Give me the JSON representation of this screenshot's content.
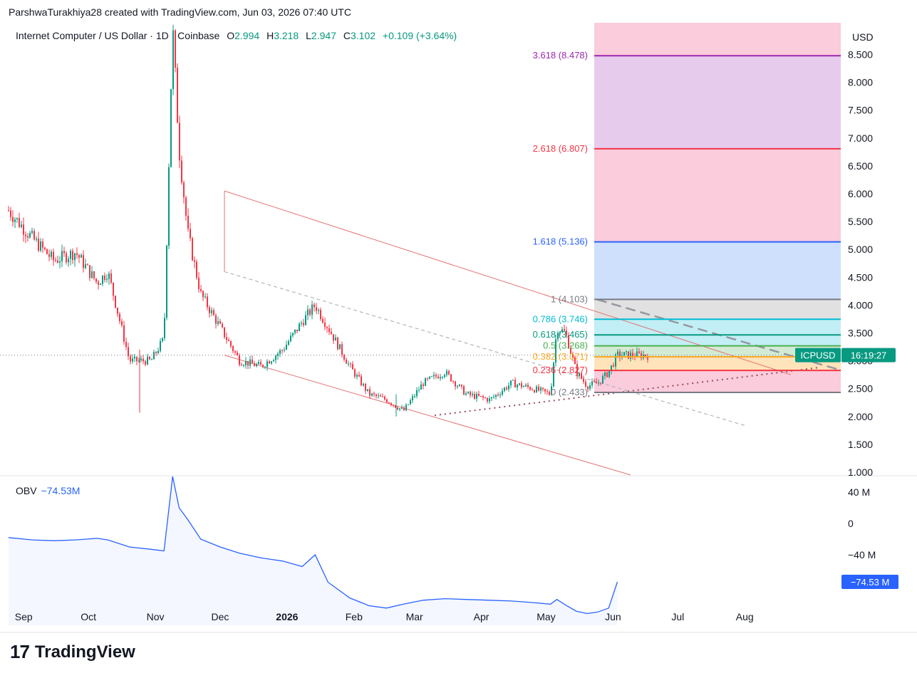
{
  "credit": "ParshwaTurakhiya28 created with TradingView.com, Jun 03, 2026 07:40 UTC",
  "header": {
    "symbol": "Internet Computer / US Dollar · 1D · Coinbase",
    "open_label": "O",
    "open": "2.994",
    "high_label": "H",
    "high": "3.218",
    "low_label": "L",
    "low": "2.947",
    "close_label": "C",
    "close": "3.102",
    "change": "+0.109 (+3.64%)"
  },
  "colors": {
    "up": "#089981",
    "down": "#f23645",
    "obv": "#2962ff",
    "channel": "#e57373",
    "fib_red_zone": "#f8bbd0",
    "fib_purple_zone": "#e1bee7",
    "fib_blue_zone": "#c5dafc"
  },
  "price_axis": {
    "unit": "USD",
    "ticks": [
      "8.500",
      "8.000",
      "7.500",
      "7.000",
      "6.500",
      "6.000",
      "5.500",
      "5.000",
      "4.500",
      "4.000",
      "3.500",
      "3.000",
      "2.500",
      "2.000",
      "1.500",
      "1.000"
    ]
  },
  "time_axis": {
    "ticks": [
      "Sep",
      "Oct",
      "Nov",
      "Dec",
      "2026",
      "Feb",
      "Mar",
      "Apr",
      "May",
      "Jun",
      "Jul",
      "Aug"
    ]
  },
  "price_tag": {
    "symbol": "ICPUSD",
    "countdown": "16:19:27"
  },
  "obv": {
    "label": "OBV",
    "value": "−74.53M",
    "tag": "−74.53 M",
    "ticks": [
      "40 M",
      "0",
      "−40 M"
    ]
  },
  "fib_levels": [
    {
      "label": "3.618 (8.478)",
      "value": 8.478,
      "color": "#9c27b0"
    },
    {
      "label": "2.618 (6.807)",
      "value": 6.807,
      "color": "#f23645"
    },
    {
      "label": "1.618 (5.136)",
      "value": 5.136,
      "color": "#2962ff"
    },
    {
      "label": "1 (4.103)",
      "value": 4.103,
      "color": "#787b86"
    },
    {
      "label": "0.786 (3.746)",
      "value": 3.746,
      "color": "#00bcd4"
    },
    {
      "label": "0.618 (3.465)",
      "value": 3.465,
      "color": "#089981"
    },
    {
      "label": "0.5 (3.268)",
      "value": 3.268,
      "color": "#4caf50"
    },
    {
      "label": "0.382 (3.071)",
      "value": 3.071,
      "color": "#f9a825"
    },
    {
      "label": "0.236 (2.827)",
      "value": 2.827,
      "color": "#f23645"
    },
    {
      "label": "0 (2.433)",
      "value": 2.433,
      "color": "#787b86"
    }
  ],
  "brand": "TradingView",
  "chart_data": {
    "type": "line",
    "title": "Internet Computer / US Dollar · 1D · Coinbase",
    "ylabel": "USD",
    "ylim": [
      1.0,
      8.8
    ],
    "x": [
      "2025-08-25",
      "2025-09-05",
      "2025-09-15",
      "2025-09-25",
      "2025-10-05",
      "2025-10-10",
      "2025-10-20",
      "2025-10-30",
      "2025-11-05",
      "2025-11-09",
      "2025-11-12",
      "2025-11-16",
      "2025-11-22",
      "2025-12-01",
      "2025-12-10",
      "2025-12-20",
      "2025-12-30",
      "2026-01-08",
      "2026-01-14",
      "2026-01-20",
      "2026-01-30",
      "2026-02-08",
      "2026-02-16",
      "2026-02-24",
      "2026-03-05",
      "2026-03-15",
      "2026-03-25",
      "2026-04-05",
      "2026-04-15",
      "2026-04-25",
      "2026-05-03",
      "2026-05-06",
      "2026-05-10",
      "2026-05-15",
      "2026-05-20",
      "2026-05-25",
      "2026-05-30",
      "2026-06-03"
    ],
    "series": [
      {
        "values": [
          5.7,
          5.2,
          4.8,
          4.95,
          4.4,
          4.6,
          3.0,
          3.0,
          3.4,
          9.0,
          6.8,
          5.3,
          4.2,
          3.6,
          3.0,
          2.9,
          3.2,
          3.7,
          4.0,
          3.6,
          2.9,
          2.4,
          2.3,
          2.1,
          2.6,
          2.8,
          2.4,
          2.3,
          2.6,
          2.5,
          2.4,
          3.6,
          3.5,
          2.8,
          2.55,
          2.6,
          2.8,
          3.102
        ]
      },
      {
        "name": "OBV",
        "values": [
          -18,
          -21,
          -22,
          -21,
          -19,
          -21,
          -30,
          -33,
          -35,
          60,
          20,
          5,
          -20,
          -30,
          -38,
          -44,
          -48,
          -55,
          -40,
          -75,
          -95,
          -105,
          -108,
          -103,
          -98,
          -96,
          -97,
          -98,
          -99,
          -101,
          -103,
          -97,
          -104,
          -112,
          -115,
          -113,
          -108,
          -74.53
        ]
      }
    ]
  }
}
